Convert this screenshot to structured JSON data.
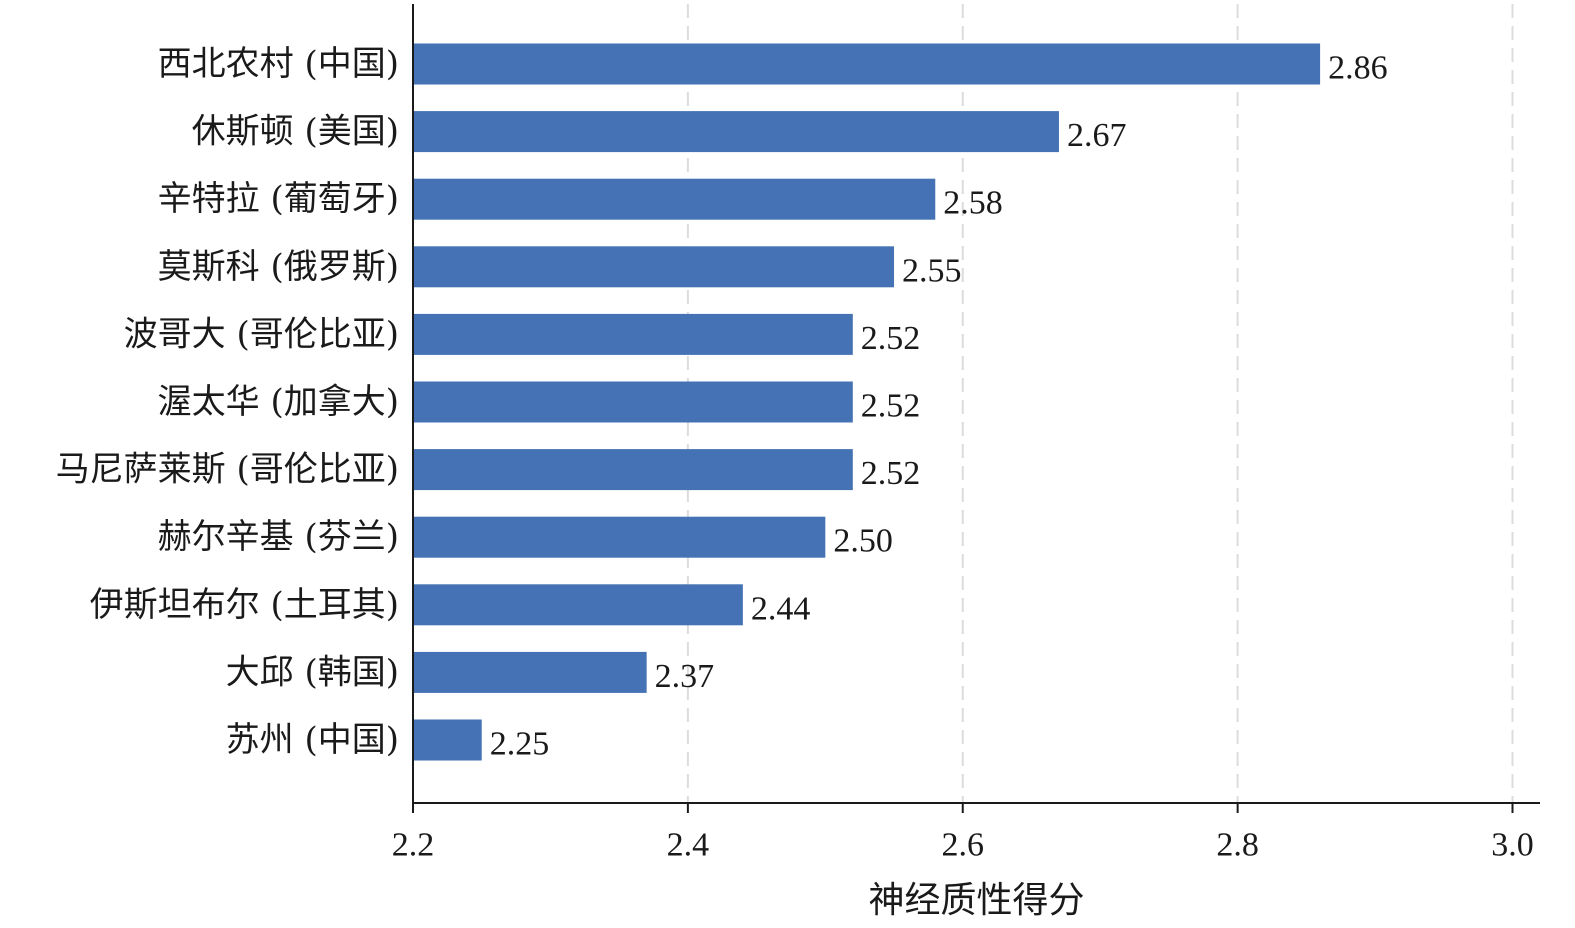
{
  "chart_data": {
    "type": "bar",
    "orientation": "horizontal",
    "categories": [
      "西北农村 (中国)",
      "休斯顿 (美国)",
      "辛特拉 (葡萄牙)",
      "莫斯科 (俄罗斯)",
      "波哥大 (哥伦比亚)",
      "渥太华 (加拿大)",
      "马尼萨莱斯 (哥伦比亚)",
      "赫尔辛基 (芬兰)",
      "伊斯坦布尔 (土耳其)",
      "大邱 (韩国)",
      "苏州 (中国)"
    ],
    "values": [
      2.86,
      2.67,
      2.58,
      2.55,
      2.52,
      2.52,
      2.52,
      2.5,
      2.44,
      2.37,
      2.25
    ],
    "value_labels": [
      "2.86",
      "2.67",
      "2.58",
      "2.55",
      "2.52",
      "2.52",
      "2.52",
      "2.50",
      "2.44",
      "2.37",
      "2.25"
    ],
    "xlabel": "神经质性得分",
    "ylabel": "",
    "xlim": [
      2.2,
      3.02
    ],
    "xticks": [
      2.2,
      2.4,
      2.6,
      2.8,
      3.0
    ],
    "xtick_labels": [
      "2.2",
      "2.4",
      "2.6",
      "2.8",
      "3.0"
    ],
    "grid": "vertical dashed",
    "bar_color": "#4472b4"
  }
}
